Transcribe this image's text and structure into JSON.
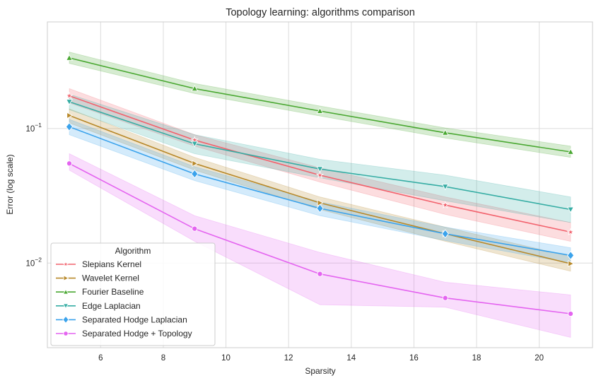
{
  "chart_data": {
    "type": "line",
    "title": "Topology learning: algorithms comparison",
    "xlabel": "Sparsity",
    "ylabel": "Error (log scale)",
    "yscale": "log",
    "xlim": [
      4.3,
      21.7
    ],
    "ylim": [
      0.00235,
      0.62
    ],
    "x": [
      5,
      9,
      13,
      17,
      21
    ],
    "xticks": [
      6,
      8,
      10,
      12,
      14,
      16,
      18,
      20
    ],
    "xtick_labels": [
      "6",
      "8",
      "10",
      "12",
      "14",
      "16",
      "18",
      "20"
    ],
    "yticks": [
      0.01,
      0.1
    ],
    "ytick_labels": [
      {
        "base": "10",
        "exp": "−2"
      },
      {
        "base": "10",
        "exp": "−1"
      }
    ],
    "grid": true,
    "legend": {
      "title": "Algorithm",
      "placement": "lower-left"
    },
    "series": [
      {
        "name": "Slepians Kernel",
        "color": "#f2636e",
        "marker": "star",
        "values": [
          0.175,
          0.082,
          0.045,
          0.027,
          0.017
        ],
        "lower": [
          0.155,
          0.074,
          0.04,
          0.023,
          0.0145
        ],
        "upper": [
          0.198,
          0.09,
          0.051,
          0.031,
          0.02
        ]
      },
      {
        "name": "Wavelet Kernel",
        "color": "#b8892a",
        "marker": "triangle-right",
        "values": [
          0.125,
          0.055,
          0.028,
          0.0165,
          0.0099
        ],
        "lower": [
          0.11,
          0.049,
          0.025,
          0.0145,
          0.0087
        ],
        "upper": [
          0.14,
          0.061,
          0.031,
          0.0185,
          0.0112
        ]
      },
      {
        "name": "Fourier Baseline",
        "color": "#4aa832",
        "marker": "triangle-up",
        "values": [
          0.335,
          0.198,
          0.135,
          0.093,
          0.067
        ],
        "lower": [
          0.305,
          0.182,
          0.124,
          0.085,
          0.061
        ],
        "upper": [
          0.37,
          0.216,
          0.147,
          0.101,
          0.074
        ]
      },
      {
        "name": "Edge Laplacian",
        "color": "#36ada4",
        "marker": "triangle-down",
        "values": [
          0.158,
          0.077,
          0.05,
          0.037,
          0.025
        ],
        "lower": [
          0.138,
          0.065,
          0.043,
          0.029,
          0.02
        ],
        "upper": [
          0.18,
          0.09,
          0.059,
          0.045,
          0.031
        ]
      },
      {
        "name": "Separated Hodge Laplacian",
        "color": "#3ba3ec",
        "marker": "diamond",
        "values": [
          0.103,
          0.046,
          0.0255,
          0.0165,
          0.0114
        ],
        "lower": [
          0.09,
          0.041,
          0.0225,
          0.0147,
          0.01
        ],
        "upper": [
          0.117,
          0.052,
          0.0285,
          0.0185,
          0.013
        ]
      },
      {
        "name": "Separated Hodge + Topology",
        "color": "#e464f0",
        "marker": "circle",
        "values": [
          0.055,
          0.018,
          0.0083,
          0.0055,
          0.0042
        ],
        "lower": [
          0.049,
          0.0145,
          0.0049,
          0.0047,
          0.0028
        ],
        "upper": [
          0.065,
          0.0225,
          0.012,
          0.0072,
          0.0058
        ]
      }
    ]
  }
}
